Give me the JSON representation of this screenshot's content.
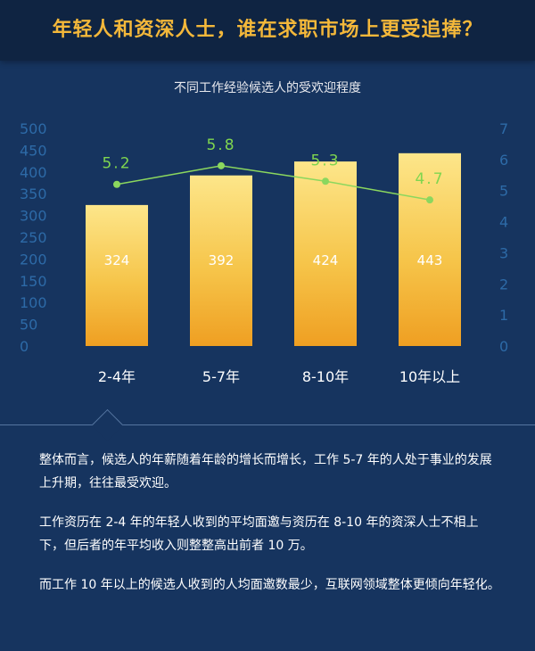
{
  "header": {
    "title": "年轻人和资深人士，谁在求职市场上更受追捧？"
  },
  "chart_data": {
    "type": "bar",
    "title": "不同工作经验候选人的受欢迎程度",
    "categories": [
      "2-4年",
      "5-7年",
      "8-10年",
      "10年以上"
    ],
    "series": [
      {
        "type": "bar",
        "axis": "left",
        "values": [
          324,
          392,
          424,
          443
        ]
      },
      {
        "type": "line",
        "axis": "right",
        "values": [
          5.2,
          5.8,
          5.3,
          4.7
        ]
      }
    ],
    "y_left": {
      "ticks": [
        0,
        50,
        100,
        150,
        200,
        250,
        300,
        350,
        400,
        450,
        500
      ],
      "range": [
        0,
        500
      ]
    },
    "y_right": {
      "ticks": [
        0,
        1,
        2,
        3,
        4,
        5,
        6,
        7
      ],
      "range": [
        0,
        7
      ]
    },
    "grid": false,
    "colors": {
      "bar_top": "#fce27a",
      "bar_bottom": "#f0a92a",
      "line": "#8bd75e",
      "axis_tick": "#2d6aa7"
    }
  },
  "body": {
    "paragraphs": [
      "整体而言，候选人的年薪随着年龄的增长而增长，工作 5-7 年的人处于事业的发展上升期，往往最受欢迎。",
      "工作资历在 2-4 年的年轻人收到的平均面邀与资历在 8-10 年的资深人士不相上下，但后者的年平均收入则整整高出前者 10 万。",
      "而工作 10 年以上的候选人收到的人均面邀数最少，互联网领域整体更倾向年轻化。"
    ]
  }
}
